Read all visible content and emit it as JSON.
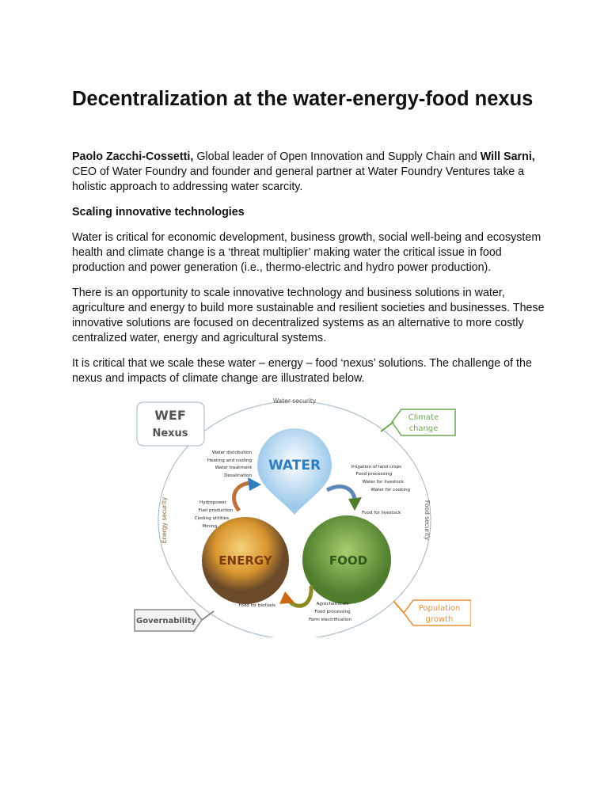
{
  "title": "Decentralization at the water-energy-food nexus",
  "intro": {
    "author1": "Paolo Zacchi-Cossetti,",
    "text1": " Global leader of Open Innovation and Supply Chain and ",
    "author2": "Will Sarni,",
    "text2": " CEO of Water Foundry and founder and general partner at Water Foundry Ventures take a holistic approach to addressing water scarcity."
  },
  "section_heading": "Scaling innovative technologies",
  "paragraphs": [
    "Water is critical for economic development, business growth, social well-being and ecosystem health and climate change is a ‘threat multiplier’ making water the critical issue in food production and power generation (i.e., thermo-electric and hydro power production).",
    "There is an opportunity to scale innovative technology and business solutions in water, agriculture and energy to build more sustainable and resilient societies and businesses. These innovative solutions are focused on decentralized systems as an alternative to more costly centralized water, energy and agricultural systems.",
    "It is critical that we scale these water – energy – food ‘nexus’ solutions. The challenge of the nexus and impacts of climate change are illustrated below."
  ],
  "diagram": {
    "wef": "WEF",
    "nexus": "Nexus",
    "water_security": "Water security",
    "energy_security": "Energy security",
    "food_security": "Food security",
    "climate": [
      "Climate",
      "change"
    ],
    "population": [
      "Population",
      "growth"
    ],
    "governability": "Governability",
    "water": "WATER",
    "energy": "ENERGY",
    "food": "FOOD",
    "water_to_energy": [
      "Water distribution",
      "Heating and cooling",
      "Water treatment",
      "Desalination"
    ],
    "water_to_food": [
      "Irrigation of land crops",
      "Food processing",
      "Water for livestock",
      "Water for cooking"
    ],
    "energy_to_water": [
      "Hydropower",
      "Fuel production",
      "Cooling utilities",
      "Mining"
    ],
    "food_for_livestock": "Food for livestock",
    "food_for_biofuels": "Food for biofuels",
    "food_energy": [
      "Agrochemicals",
      "Food processing",
      "Farm electrification"
    ],
    "colors": {
      "water": "#2f7fc0",
      "energy": "#7a3b10",
      "food": "#2e5a1f",
      "climate": "#6aa84f",
      "population": "#e69138",
      "governability": "#777777"
    }
  }
}
